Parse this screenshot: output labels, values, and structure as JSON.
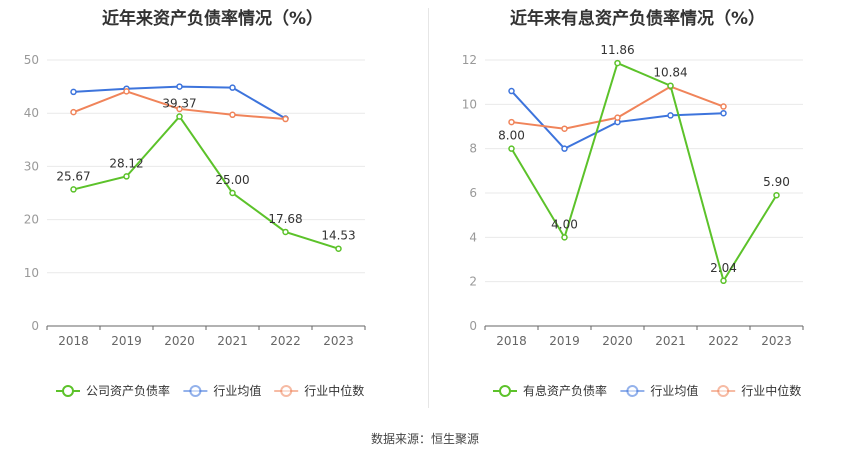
{
  "source_text": "数据来源：恒生聚源",
  "chart_data": [
    {
      "type": "line",
      "title": "近年来资产负债率情况（%）",
      "categories": [
        "2018",
        "2019",
        "2020",
        "2021",
        "2022",
        "2023"
      ],
      "ylim": [
        0,
        50
      ],
      "yticks": [
        0,
        10,
        20,
        30,
        40,
        50
      ],
      "grid": true,
      "legend_position": "bottom",
      "series": [
        {
          "name": "公司资产负债率",
          "color": "#5cc22a",
          "values": [
            25.67,
            28.12,
            39.37,
            25.0,
            17.68,
            14.53
          ],
          "labels": [
            "25.67",
            "28.12",
            "39.37",
            "25.00",
            "17.68",
            "14.53"
          ]
        },
        {
          "name": "行业均值",
          "color": "#3d74dc",
          "values": [
            44.0,
            44.6,
            45.0,
            44.8,
            39.0,
            null
          ]
        },
        {
          "name": "行业中位数",
          "color": "#f0845a",
          "values": [
            40.2,
            44.1,
            40.8,
            39.7,
            38.9,
            null
          ]
        }
      ]
    },
    {
      "type": "line",
      "title": "近年来有息资产负债率情况（%）",
      "categories": [
        "2018",
        "2019",
        "2020",
        "2021",
        "2022",
        "2023"
      ],
      "ylim": [
        0,
        12
      ],
      "yticks": [
        0,
        2,
        4,
        6,
        8,
        10,
        12
      ],
      "grid": true,
      "legend_position": "bottom",
      "series": [
        {
          "name": "有息资产负债率",
          "color": "#5cc22a",
          "values": [
            8.0,
            4.0,
            11.86,
            10.84,
            2.04,
            5.9
          ],
          "labels": [
            "8.00",
            "4.00",
            "11.86",
            "10.84",
            "2.04",
            "5.90"
          ]
        },
        {
          "name": "行业均值",
          "color": "#3d74dc",
          "values": [
            10.6,
            8.0,
            9.2,
            9.5,
            9.6,
            null
          ]
        },
        {
          "name": "行业中位数",
          "color": "#f0845a",
          "values": [
            9.2,
            8.9,
            9.4,
            10.8,
            9.9,
            null
          ]
        }
      ]
    }
  ]
}
